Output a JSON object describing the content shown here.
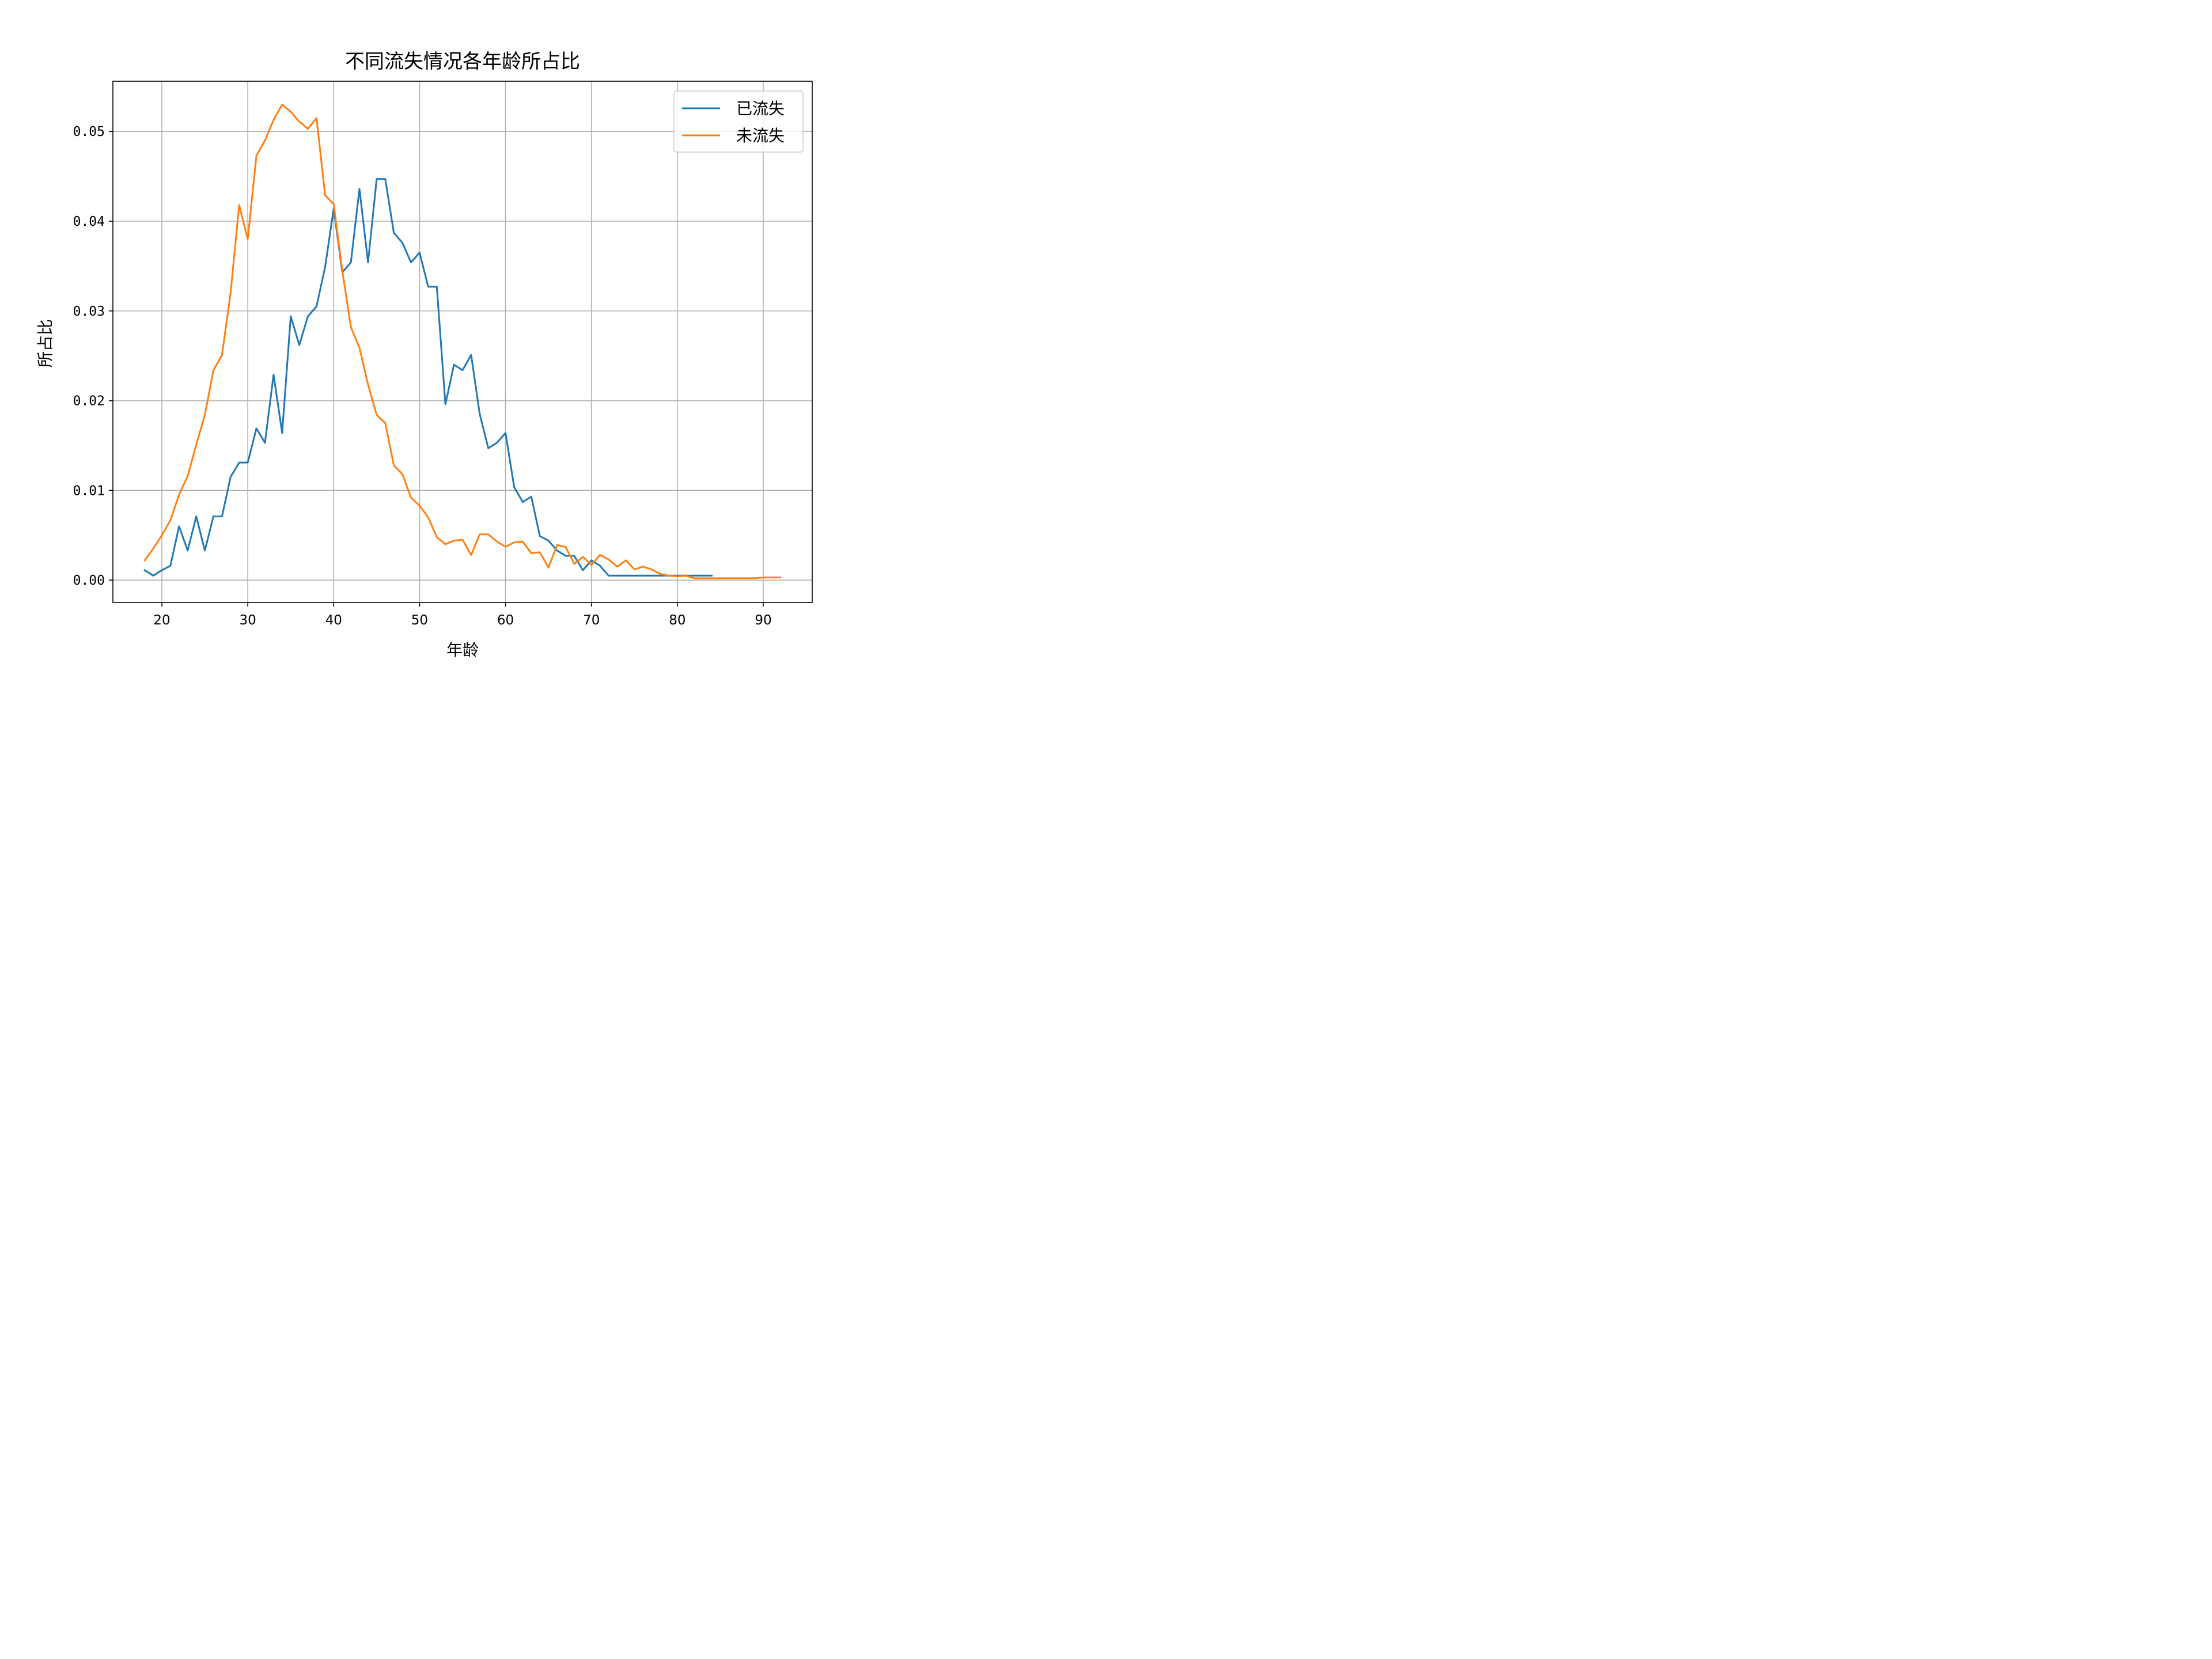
{
  "chart_data": {
    "type": "line",
    "title": "不同流失情况各年龄所占比",
    "xlabel": "年龄",
    "ylabel": "所占比",
    "xlim": [
      14.3,
      95.7
    ],
    "ylim": [
      -0.0025,
      0.0556
    ],
    "xticks": [
      20,
      30,
      40,
      50,
      60,
      70,
      80,
      90
    ],
    "yticks": [
      0.0,
      0.01,
      0.02,
      0.03,
      0.04,
      0.05
    ],
    "ytick_labels": [
      "0.00",
      "0.01",
      "0.02",
      "0.03",
      "0.04",
      "0.05"
    ],
    "grid": true,
    "legend_position": "top-right",
    "series": [
      {
        "name": "已流失",
        "color": "#1f77b4",
        "x": [
          18,
          19,
          20,
          21,
          22,
          23,
          24,
          25,
          26,
          27,
          28,
          29,
          30,
          31,
          32,
          33,
          34,
          35,
          36,
          37,
          38,
          39,
          40,
          41,
          42,
          43,
          44,
          45,
          46,
          47,
          48,
          49,
          50,
          51,
          52,
          53,
          54,
          55,
          56,
          57,
          58,
          59,
          60,
          61,
          62,
          63,
          64,
          65,
          66,
          67,
          68,
          69,
          70,
          71,
          72,
          73,
          74,
          75,
          76,
          77,
          78,
          79,
          80,
          81,
          82,
          83,
          84
        ],
        "y": [
          0.0011,
          0.0005,
          0.0011,
          0.0016,
          0.006,
          0.0033,
          0.0071,
          0.0033,
          0.0071,
          0.0071,
          0.0115,
          0.0131,
          0.0131,
          0.0169,
          0.0153,
          0.0229,
          0.0164,
          0.0294,
          0.0262,
          0.0294,
          0.0305,
          0.0349,
          0.0414,
          0.0343,
          0.0354,
          0.0436,
          0.0354,
          0.0447,
          0.0447,
          0.0387,
          0.0376,
          0.0354,
          0.0365,
          0.0327,
          0.0327,
          0.0196,
          0.024,
          0.0234,
          0.0251,
          0.0185,
          0.0147,
          0.0153,
          0.0164,
          0.0104,
          0.0087,
          0.0093,
          0.0049,
          0.0044,
          0.0033,
          0.0027,
          0.0027,
          0.0011,
          0.0022,
          0.0016,
          0.0005,
          0.0005,
          0.0005,
          0.0005,
          0.0005,
          0.0005,
          0.0005,
          0.0005,
          0.0005,
          0.0005,
          0.0005,
          0.0005,
          0.0005
        ]
      },
      {
        "name": "未流失",
        "color": "#ff7f0e",
        "x": [
          18,
          19,
          20,
          21,
          22,
          23,
          24,
          25,
          26,
          27,
          28,
          29,
          30,
          31,
          32,
          33,
          34,
          35,
          36,
          37,
          38,
          39,
          40,
          41,
          42,
          43,
          44,
          45,
          46,
          47,
          48,
          49,
          50,
          51,
          52,
          53,
          54,
          55,
          56,
          57,
          58,
          59,
          60,
          61,
          62,
          63,
          64,
          65,
          66,
          67,
          68,
          69,
          70,
          71,
          72,
          73,
          74,
          75,
          76,
          77,
          78,
          79,
          80,
          81,
          82,
          83,
          84,
          85,
          86,
          87,
          88,
          89,
          90,
          91,
          92
        ],
        "y": [
          0.0022,
          0.0035,
          0.005,
          0.0067,
          0.0095,
          0.0116,
          0.0151,
          0.0184,
          0.0234,
          0.0251,
          0.032,
          0.0418,
          0.038,
          0.0473,
          0.049,
          0.0513,
          0.053,
          0.0522,
          0.0511,
          0.0503,
          0.0515,
          0.0429,
          0.0419,
          0.0345,
          0.0282,
          0.0259,
          0.0218,
          0.0184,
          0.0175,
          0.0128,
          0.0118,
          0.0092,
          0.0083,
          0.007,
          0.0048,
          0.004,
          0.0044,
          0.0045,
          0.0028,
          0.0051,
          0.0051,
          0.0043,
          0.0037,
          0.0042,
          0.0043,
          0.003,
          0.0031,
          0.0014,
          0.0039,
          0.0037,
          0.0018,
          0.0026,
          0.0017,
          0.0028,
          0.0023,
          0.0015,
          0.0022,
          0.0012,
          0.0015,
          0.0012,
          0.0007,
          0.0005,
          0.0004,
          0.0005,
          0.0002,
          0.0002,
          0.0002,
          0.0002,
          0.0002,
          0.0002,
          0.0002,
          0.0002,
          0.0003,
          0.0003,
          0.0003
        ]
      }
    ]
  }
}
